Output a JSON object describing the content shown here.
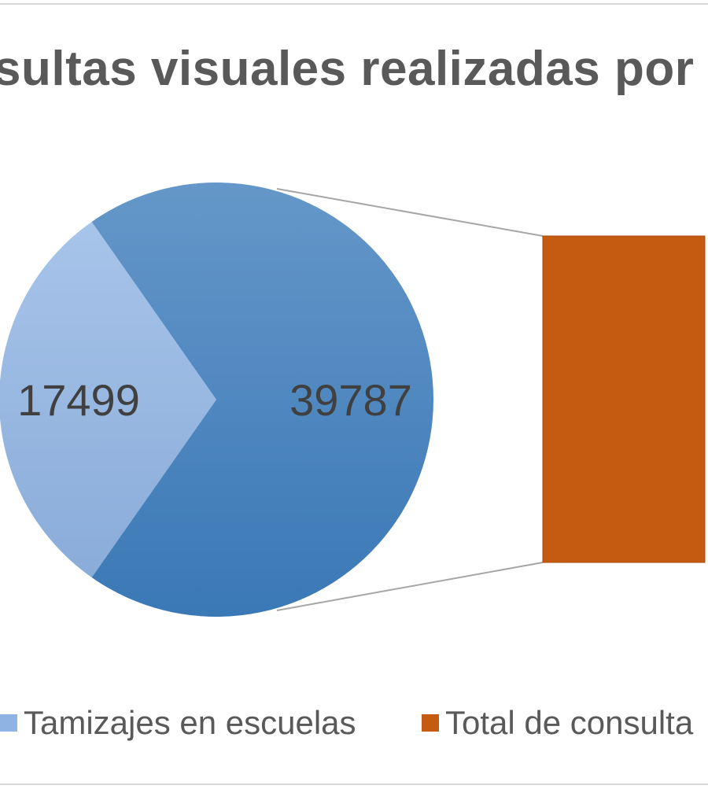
{
  "chart_data": {
    "type": "pie",
    "subtype": "bar-of-pie",
    "title": "sultas visuales realizadas por I",
    "slices": [
      {
        "name": "Tamizajes en escuelas",
        "value": 17499,
        "color": "#9ab9e2"
      },
      {
        "name": "",
        "value": 39787,
        "color": "#4a86c4"
      }
    ],
    "secondary_bar": {
      "name": "Total de consulta",
      "color": "#c55a11"
    },
    "data_labels": [
      "17499",
      "39787"
    ],
    "legend": {
      "position": "bottom",
      "entries": [
        {
          "label": "Tamizajes en escuelas",
          "color": "#8fb4e3"
        },
        {
          "label": "Total de consulta",
          "color": "#c55a11"
        }
      ]
    },
    "connector_color": "#a6a6a6"
  }
}
